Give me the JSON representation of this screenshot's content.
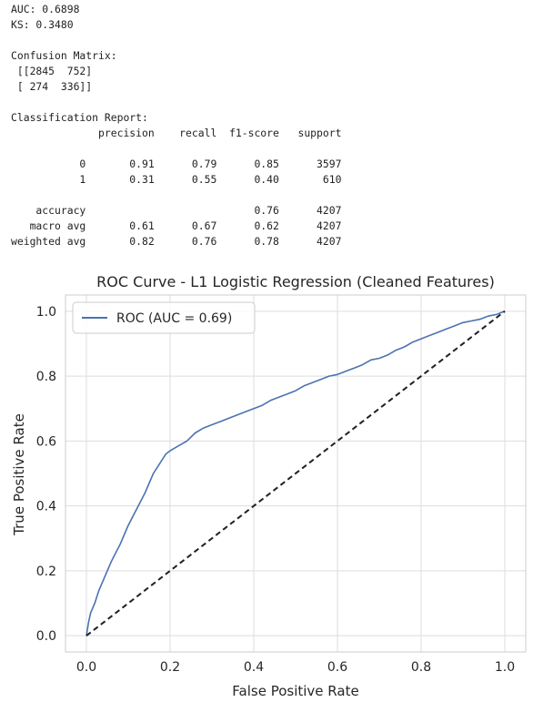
{
  "output": {
    "auc_line": "AUC: 0.6898",
    "ks_line": "KS: 0.3480",
    "cm_title": "Confusion Matrix:",
    "cm_row1": " [[2845  752]",
    "cm_row2": " [ 274  336]]",
    "cr_title": "Classification Report:",
    "cr_header": "              precision    recall  f1-score   support",
    "cr_row0": "           0       0.91      0.79      0.85      3597",
    "cr_row1": "           1       0.31      0.55      0.40       610",
    "cr_accuracy": "    accuracy                           0.76      4207",
    "cr_macro": "   macro avg       0.61      0.67      0.62      4207",
    "cr_weighted": "weighted avg       0.82      0.76      0.78      4207"
  },
  "chart_data": {
    "type": "line",
    "title": "ROC Curve - L1 Logistic Regression (Cleaned Features)",
    "xlabel": "False Positive Rate",
    "ylabel": "True Positive Rate",
    "xlim": [
      -0.05,
      1.05
    ],
    "ylim": [
      -0.05,
      1.05
    ],
    "xticks": [
      0.0,
      0.2,
      0.4,
      0.6,
      0.8,
      1.0
    ],
    "yticks": [
      0.0,
      0.2,
      0.4,
      0.6,
      0.8,
      1.0
    ],
    "xtick_labels": [
      "0.0",
      "0.2",
      "0.4",
      "0.6",
      "0.8",
      "1.0"
    ],
    "ytick_labels": [
      "0.0",
      "0.2",
      "0.4",
      "0.6",
      "0.8",
      "1.0"
    ],
    "grid": true,
    "legend_position": "top-left",
    "series": [
      {
        "name": "ROC (AUC = 0.69)",
        "color": "#4c72b0",
        "style": "solid",
        "x": [
          0.0,
          0.005,
          0.01,
          0.02,
          0.03,
          0.04,
          0.06,
          0.08,
          0.1,
          0.12,
          0.14,
          0.16,
          0.17,
          0.18,
          0.19,
          0.2,
          0.22,
          0.24,
          0.26,
          0.28,
          0.3,
          0.32,
          0.35,
          0.38,
          0.4,
          0.42,
          0.44,
          0.46,
          0.48,
          0.5,
          0.52,
          0.54,
          0.56,
          0.58,
          0.6,
          0.62,
          0.64,
          0.66,
          0.68,
          0.7,
          0.72,
          0.74,
          0.76,
          0.78,
          0.8,
          0.82,
          0.84,
          0.86,
          0.88,
          0.9,
          0.92,
          0.94,
          0.96,
          0.98,
          1.0
        ],
        "y": [
          0.0,
          0.04,
          0.07,
          0.1,
          0.14,
          0.17,
          0.23,
          0.28,
          0.34,
          0.39,
          0.44,
          0.5,
          0.52,
          0.54,
          0.56,
          0.57,
          0.585,
          0.6,
          0.625,
          0.64,
          0.65,
          0.66,
          0.675,
          0.69,
          0.7,
          0.71,
          0.725,
          0.735,
          0.745,
          0.755,
          0.77,
          0.78,
          0.79,
          0.8,
          0.805,
          0.815,
          0.825,
          0.835,
          0.85,
          0.855,
          0.865,
          0.88,
          0.89,
          0.905,
          0.915,
          0.925,
          0.935,
          0.945,
          0.955,
          0.965,
          0.97,
          0.975,
          0.985,
          0.99,
          1.0
        ]
      },
      {
        "name": "",
        "color": "#222222",
        "style": "dashed",
        "x": [
          0.0,
          1.0
        ],
        "y": [
          0.0,
          1.0
        ]
      }
    ]
  }
}
